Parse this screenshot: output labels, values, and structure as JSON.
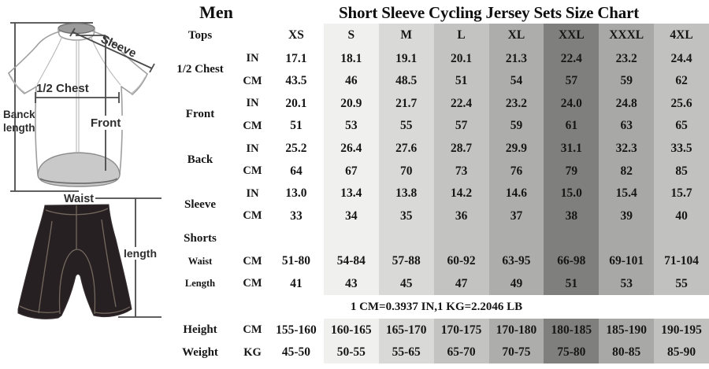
{
  "header": {
    "gender_title": "Men",
    "main_title": "Short Sleeve Cycling Jersey Sets Size Chart"
  },
  "illustration": {
    "labels": {
      "back_length_line1": "Banck",
      "back_length_line2": "length",
      "sleeve": "Sleeve",
      "half_chest": "1/2 Chest",
      "front": "Front",
      "waist": "Waist",
      "shorts_length": "length"
    },
    "colors": {
      "outline": "#9f9f9f",
      "dimension_line": "#4a4a4a",
      "shorts_fill": "#272022",
      "shorts_seam": "#7b7065",
      "hem_fill": "#c9c9c9"
    }
  },
  "table": {
    "corner_label": "Tops",
    "sizes": [
      "XS",
      "S",
      "M",
      "L",
      "XL",
      "XXL",
      "XXXL",
      "4XL"
    ],
    "column_colors": [
      "transparent",
      "#f0f0ee",
      "#d9d9d7",
      "#c3c3c1",
      "#adadab",
      "#7f7f7d",
      "#a8a8a6",
      "#c1c1bf"
    ],
    "body_rows": [
      {
        "label": "1/2 Chest",
        "label_span": 2,
        "unit": "IN",
        "values": [
          "17.1",
          "18.1",
          "19.1",
          "20.1",
          "21.3",
          "22.4",
          "23.2",
          "24.4"
        ]
      },
      {
        "unit": "CM",
        "values": [
          "43.5",
          "46",
          "48.5",
          "51",
          "54",
          "57",
          "59",
          "62"
        ]
      },
      {
        "label": "Front",
        "label_span": 2,
        "unit": "IN",
        "values": [
          "20.1",
          "20.9",
          "21.7",
          "22.4",
          "23.2",
          "24.0",
          "24.8",
          "25.6"
        ]
      },
      {
        "unit": "CM",
        "values": [
          "51",
          "53",
          "55",
          "57",
          "59",
          "61",
          "63",
          "65"
        ]
      },
      {
        "label": "Back",
        "label_span": 2,
        "unit": "IN",
        "values": [
          "25.2",
          "26.4",
          "27.6",
          "28.7",
          "29.9",
          "31.1",
          "32.3",
          "33.5"
        ]
      },
      {
        "unit": "CM",
        "values": [
          "64",
          "67",
          "70",
          "73",
          "76",
          "79",
          "82",
          "85"
        ]
      },
      {
        "label": "Sleeve",
        "label_span": 2,
        "unit": "IN",
        "values": [
          "13.0",
          "13.4",
          "13.8",
          "14.2",
          "14.6",
          "15.0",
          "15.4",
          "15.7"
        ]
      },
      {
        "unit": "CM",
        "values": [
          "33",
          "34",
          "35",
          "36",
          "37",
          "38",
          "39",
          "40"
        ]
      },
      {
        "label": "Shorts",
        "label_span": 1,
        "unit": "",
        "values": [
          "",
          "",
          "",
          "",
          "",
          "",
          "",
          ""
        ]
      },
      {
        "label": "Waist",
        "small": true,
        "unit": "CM",
        "values": [
          "51-80",
          "54-84",
          "57-88",
          "60-92",
          "63-95",
          "66-98",
          "69-101",
          "71-104"
        ]
      },
      {
        "label": "Length",
        "small": true,
        "unit": "CM",
        "values": [
          "41",
          "43",
          "45",
          "47",
          "49",
          "51",
          "53",
          "55"
        ]
      }
    ],
    "note": "1 CM=0.3937 IN,1 KG=2.2046 LB",
    "footer_rows": [
      {
        "label": "Height",
        "unit": "CM",
        "values": [
          "155-160",
          "160-165",
          "165-170",
          "170-175",
          "170-180",
          "180-185",
          "185-190",
          "190-195"
        ]
      },
      {
        "label": "Weight",
        "unit": "KG",
        "values": [
          "45-50",
          "50-55",
          "55-65",
          "65-70",
          "70-75",
          "75-80",
          "80-85",
          "85-90"
        ]
      }
    ]
  }
}
